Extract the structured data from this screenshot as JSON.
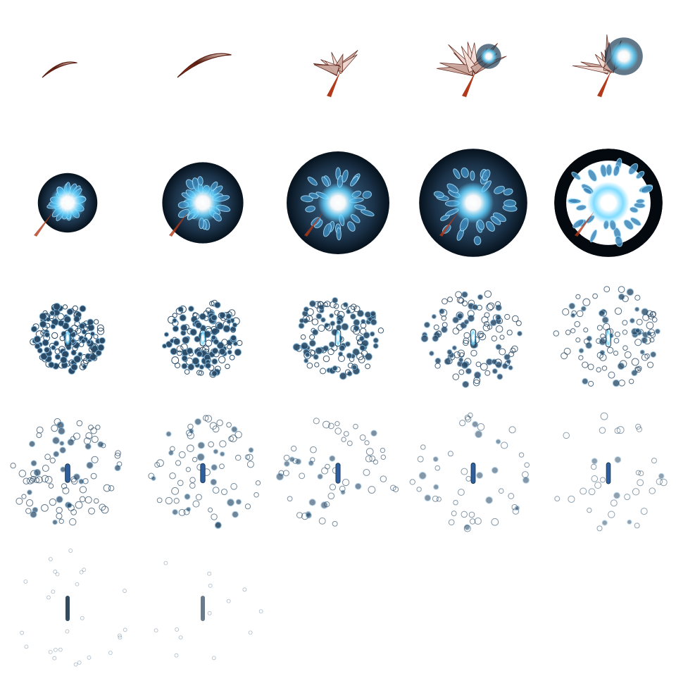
{
  "sheet": {
    "columns": 5,
    "rows": 5,
    "frame_count": 22,
    "background": "#ffffff",
    "colors": {
      "streak_dark": "#5a1e12",
      "streak_light": "#f3ddd6",
      "core": "#ffffff",
      "glow": "#5fd3ff",
      "crystal": "#3b86b8",
      "crystal_dark": "#1f3d55",
      "ring": "#1b3248",
      "ring_dark": "#06121d",
      "particle": "#2a4a66"
    }
  },
  "frames": [
    {
      "phase": "streak",
      "streak_scale": 0.55
    },
    {
      "phase": "streak",
      "streak_scale": 0.85
    },
    {
      "phase": "burst",
      "burst_scale": 0.7,
      "core": 0
    },
    {
      "phase": "burst",
      "burst_scale": 1.0,
      "core": 0.45
    },
    {
      "phase": "burst",
      "burst_scale": 0.9,
      "core": 0.8
    },
    {
      "phase": "orb",
      "ring": 0.22,
      "flower": 0.45
    },
    {
      "phase": "orb",
      "ring": 0.3,
      "flower": 0.65
    },
    {
      "phase": "orb",
      "ring": 0.38,
      "flower": 0.8
    },
    {
      "phase": "orb",
      "ring": 0.4,
      "flower": 0.9
    },
    {
      "phase": "orb",
      "ring": 0.4,
      "flower": 1.0,
      "ring_dark": true
    },
    {
      "phase": "scatter",
      "spread": 0.55,
      "density": 1.0
    },
    {
      "phase": "scatter",
      "spread": 0.62,
      "density": 0.95
    },
    {
      "phase": "scatter",
      "spread": 0.7,
      "density": 0.85
    },
    {
      "phase": "scatter",
      "spread": 0.78,
      "density": 0.75
    },
    {
      "phase": "scatter",
      "spread": 0.85,
      "density": 0.65
    },
    {
      "phase": "scatter",
      "spread": 0.9,
      "density": 0.55,
      "sparse": true
    },
    {
      "phase": "scatter",
      "spread": 0.92,
      "density": 0.45,
      "sparse": true
    },
    {
      "phase": "scatter",
      "spread": 0.95,
      "density": 0.35,
      "sparse": true
    },
    {
      "phase": "scatter",
      "spread": 0.97,
      "density": 0.28,
      "sparse": true
    },
    {
      "phase": "scatter",
      "spread": 1.0,
      "density": 0.2,
      "sparse": true
    },
    {
      "phase": "fade",
      "spread": 1.0,
      "density": 0.12
    },
    {
      "phase": "fade",
      "spread": 1.0,
      "density": 0.06
    }
  ]
}
